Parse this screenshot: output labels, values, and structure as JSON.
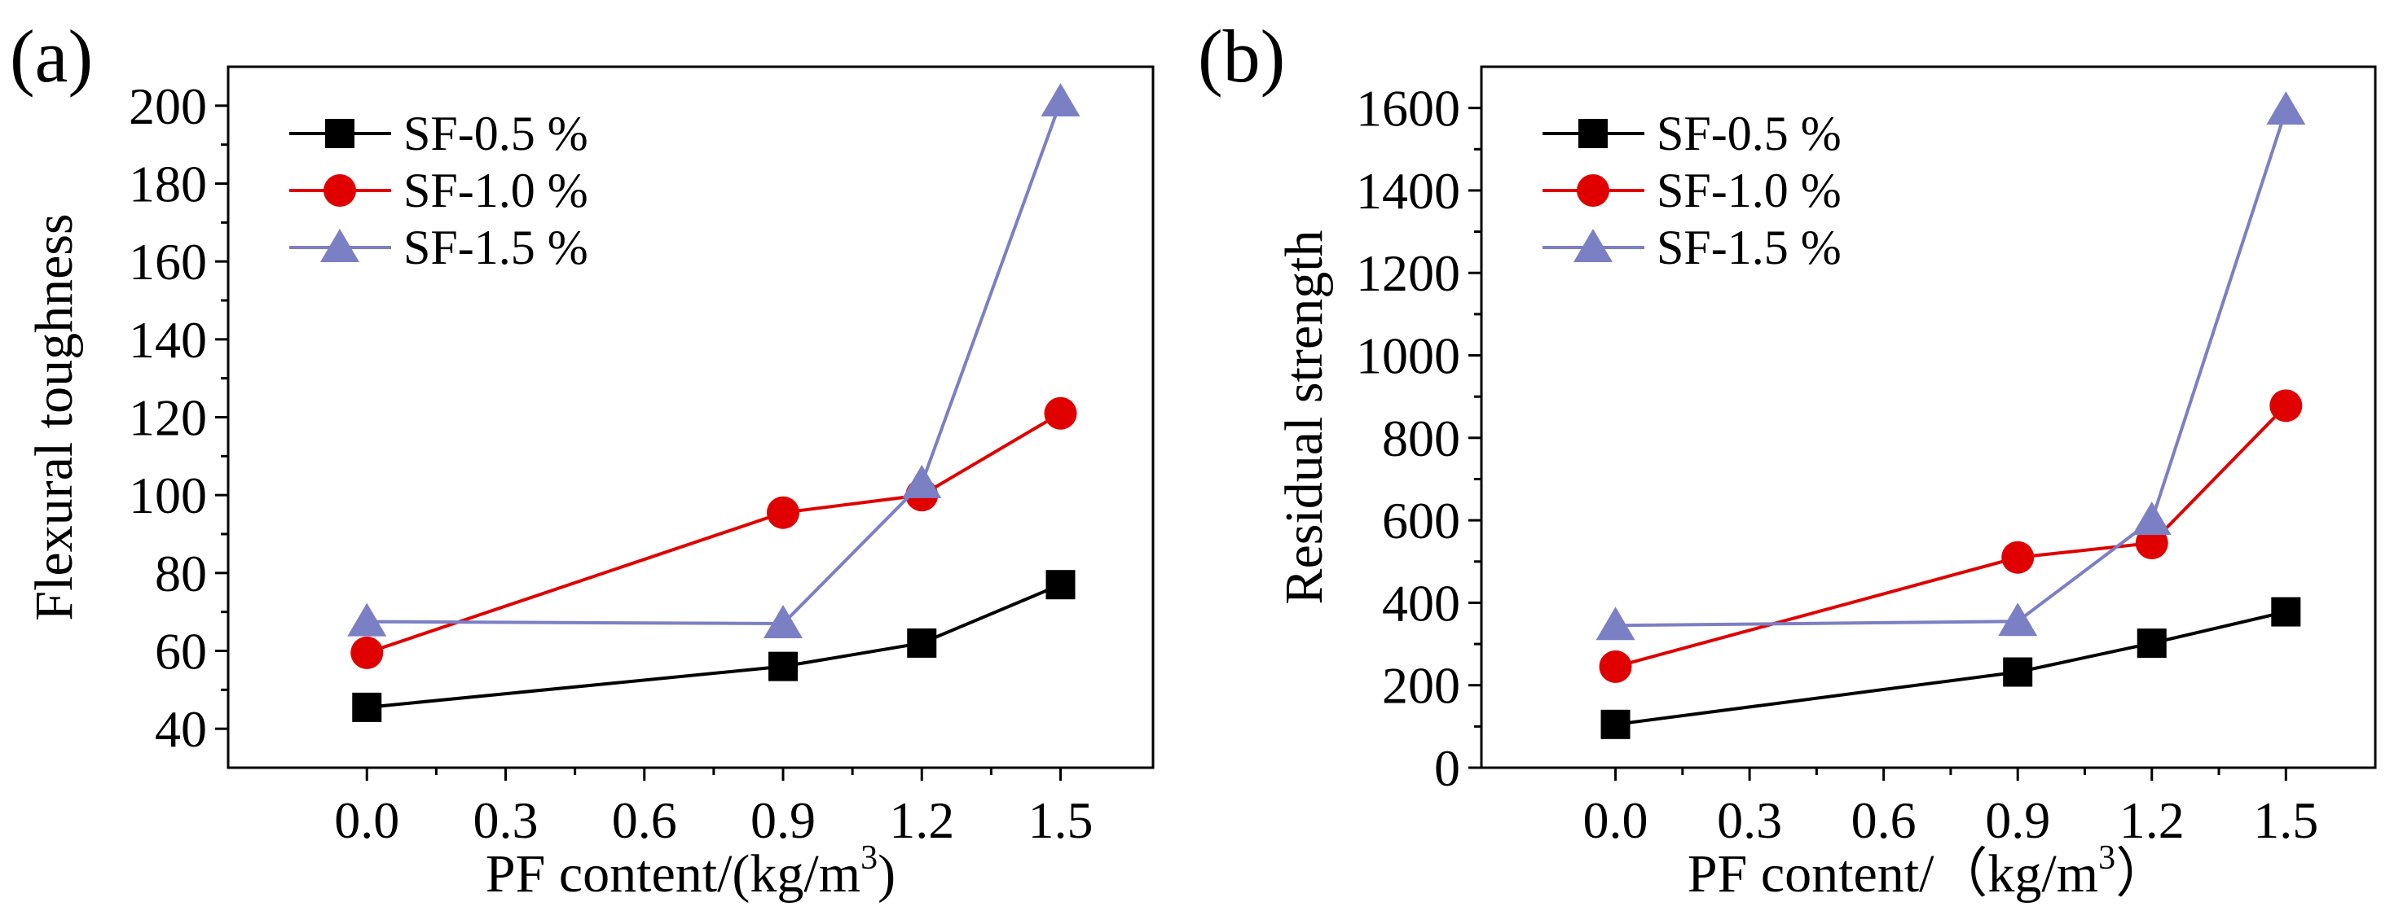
{
  "chart_data": [
    {
      "panel": "(a)",
      "type": "line",
      "xlabel": "PF content/(kg/m",
      "xlabel_sup": "3",
      "xlabel_end": ")",
      "ylabel": "Flexural toughness",
      "xlim": [
        -0.3,
        1.7
      ],
      "ylim": [
        30,
        210
      ],
      "xticks": [
        0.0,
        0.3,
        0.6,
        0.9,
        1.2,
        1.5
      ],
      "xtick_labels": [
        "0.0",
        "0.3",
        "0.6",
        "0.9",
        "1.2",
        "1.5"
      ],
      "yticks": [
        40,
        60,
        80,
        100,
        120,
        140,
        160,
        180,
        200
      ],
      "ytick_labels": [
        "40",
        "60",
        "80",
        "100",
        "120",
        "140",
        "160",
        "180",
        "200"
      ],
      "legend_position": "top-left",
      "series": [
        {
          "name": "SF-0.5 %",
          "marker": "square",
          "color": "#000000",
          "x": [
            0.0,
            0.9,
            1.2,
            1.5
          ],
          "values": [
            45.5,
            56,
            62,
            77
          ]
        },
        {
          "name": "SF-1.0 %",
          "marker": "circle",
          "color": "#e00000",
          "x": [
            0.0,
            0.9,
            1.2,
            1.5
          ],
          "values": [
            59.5,
            95.5,
            100,
            121
          ]
        },
        {
          "name": "SF-1.5 %",
          "marker": "triangle",
          "color": "#7b7fc4",
          "x": [
            0.0,
            0.9,
            1.2,
            1.5
          ],
          "values": [
            67.5,
            67,
            103,
            201
          ]
        }
      ]
    },
    {
      "panel": "(b)",
      "type": "line",
      "xlabel": "PF content/（kg/m",
      "xlabel_sup": "3",
      "xlabel_end": "）",
      "ylabel": "Residual strength",
      "xlim": [
        -0.3,
        1.7
      ],
      "ylim": [
        0,
        1700
      ],
      "xticks": [
        0.0,
        0.3,
        0.6,
        0.9,
        1.2,
        1.5
      ],
      "xtick_labels": [
        "0.0",
        "0.3",
        "0.6",
        "0.9",
        "1.2",
        "1.5"
      ],
      "yticks": [
        0,
        200,
        400,
        600,
        800,
        1000,
        1200,
        1400,
        1600
      ],
      "ytick_labels": [
        "0",
        "200",
        "400",
        "600",
        "800",
        "1000",
        "1200",
        "1400",
        "1600"
      ],
      "legend_position": "top-left",
      "series": [
        {
          "name": "SF-0.5 %",
          "marker": "square",
          "color": "#000000",
          "x": [
            0.0,
            0.9,
            1.2,
            1.5
          ],
          "values": [
            105,
            232,
            302,
            378
          ]
        },
        {
          "name": "SF-1.0 %",
          "marker": "circle",
          "color": "#e00000",
          "x": [
            0.0,
            0.9,
            1.2,
            1.5
          ],
          "values": [
            245,
            510,
            545,
            878
          ]
        },
        {
          "name": "SF-1.5 %",
          "marker": "triangle",
          "color": "#7b7fc4",
          "x": [
            0.0,
            0.9,
            1.2,
            1.5
          ],
          "values": [
            345,
            355,
            600,
            1595
          ]
        }
      ]
    }
  ]
}
